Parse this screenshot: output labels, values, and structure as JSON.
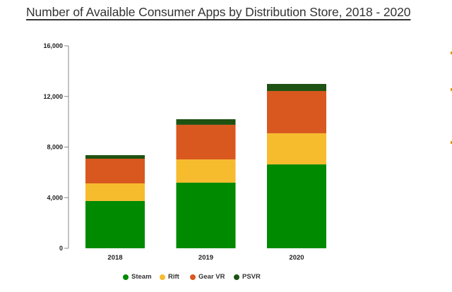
{
  "chart_data": {
    "type": "bar",
    "stacked": true,
    "title": "Number of Available Consumer Apps by Distribution Store, 2018 - 2020",
    "xlabel": "",
    "ylabel": "",
    "categories": [
      "2018",
      "2019",
      "2020"
    ],
    "ylim": [
      0,
      16000
    ],
    "yticks": [
      0,
      4000,
      8000,
      12000,
      16000
    ],
    "ytick_labels": [
      "0",
      "4,000",
      "8,000",
      "12,000",
      "16,000"
    ],
    "grid": false,
    "legend_position": "bottom",
    "series": [
      {
        "name": "Steam",
        "color": "#008a00",
        "values": [
          3740,
          5190,
          6630
        ]
      },
      {
        "name": "Rift",
        "color": "#f7bb2e",
        "values": [
          1390,
          1830,
          2460
        ]
      },
      {
        "name": "Gear VR",
        "color": "#d9581f",
        "values": [
          1950,
          2740,
          3340
        ]
      },
      {
        "name": "PSVR",
        "color": "#1e5212",
        "values": [
          280,
          440,
          560
        ]
      }
    ]
  },
  "colors": {
    "axis": "#888888",
    "text": "#222222",
    "edge_mark": "#e0921a"
  }
}
